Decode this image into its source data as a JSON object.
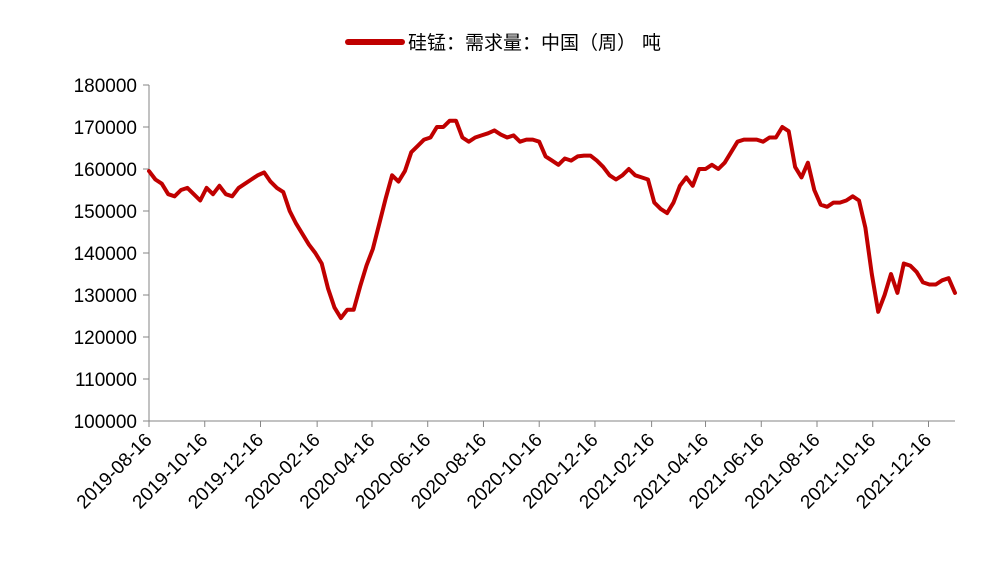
{
  "chart_data": {
    "type": "line",
    "legend": {
      "position": "top-center"
    },
    "series": [
      {
        "name": "硅锰：需求量：中国（周） 吨",
        "color": "#c00000",
        "points": [
          [
            "2019-08-16",
            159500
          ],
          [
            "2019-08-23",
            157500
          ],
          [
            "2019-08-30",
            156500
          ],
          [
            "2019-09-06",
            154000
          ],
          [
            "2019-09-13",
            153500
          ],
          [
            "2019-09-20",
            155000
          ],
          [
            "2019-09-27",
            155500
          ],
          [
            "2019-10-04",
            154000
          ],
          [
            "2019-10-11",
            152500
          ],
          [
            "2019-10-18",
            155500
          ],
          [
            "2019-10-25",
            154000
          ],
          [
            "2019-11-01",
            156000
          ],
          [
            "2019-11-08",
            154000
          ],
          [
            "2019-11-15",
            153500
          ],
          [
            "2019-11-22",
            155500
          ],
          [
            "2019-11-29",
            156500
          ],
          [
            "2019-12-06",
            157500
          ],
          [
            "2019-12-13",
            158500
          ],
          [
            "2019-12-20",
            159200
          ],
          [
            "2019-12-27",
            157000
          ],
          [
            "2020-01-03",
            155500
          ],
          [
            "2020-01-10",
            154500
          ],
          [
            "2020-01-17",
            150000
          ],
          [
            "2020-01-24",
            147000
          ],
          [
            "2020-01-31",
            144500
          ],
          [
            "2020-02-07",
            142000
          ],
          [
            "2020-02-14",
            140000
          ],
          [
            "2020-02-21",
            137500
          ],
          [
            "2020-02-28",
            131500
          ],
          [
            "2020-03-06",
            127000
          ],
          [
            "2020-03-13",
            124500
          ],
          [
            "2020-03-20",
            126500
          ],
          [
            "2020-03-27",
            126500
          ],
          [
            "2020-04-03",
            132000
          ],
          [
            "2020-04-10",
            137000
          ],
          [
            "2020-04-17",
            141000
          ],
          [
            "2020-04-24",
            147000
          ],
          [
            "2020-05-01",
            153000
          ],
          [
            "2020-05-08",
            158500
          ],
          [
            "2020-05-15",
            157000
          ],
          [
            "2020-05-22",
            159500
          ],
          [
            "2020-05-29",
            164000
          ],
          [
            "2020-06-05",
            165500
          ],
          [
            "2020-06-12",
            167000
          ],
          [
            "2020-06-19",
            167500
          ],
          [
            "2020-06-26",
            170000
          ],
          [
            "2020-07-03",
            170000
          ],
          [
            "2020-07-10",
            171500
          ],
          [
            "2020-07-17",
            171500
          ],
          [
            "2020-07-24",
            167500
          ],
          [
            "2020-07-31",
            166500
          ],
          [
            "2020-08-07",
            167500
          ],
          [
            "2020-08-14",
            168000
          ],
          [
            "2020-08-21",
            168500
          ],
          [
            "2020-08-28",
            169200
          ],
          [
            "2020-09-04",
            168200
          ],
          [
            "2020-09-11",
            167500
          ],
          [
            "2020-09-18",
            168000
          ],
          [
            "2020-09-25",
            166500
          ],
          [
            "2020-10-02",
            167000
          ],
          [
            "2020-10-09",
            167000
          ],
          [
            "2020-10-16",
            166500
          ],
          [
            "2020-10-23",
            163000
          ],
          [
            "2020-10-30",
            162000
          ],
          [
            "2020-11-06",
            161000
          ],
          [
            "2020-11-13",
            162500
          ],
          [
            "2020-11-20",
            162000
          ],
          [
            "2020-11-27",
            163000
          ],
          [
            "2020-12-04",
            163200
          ],
          [
            "2020-12-11",
            163200
          ],
          [
            "2020-12-18",
            162000
          ],
          [
            "2020-12-25",
            160500
          ],
          [
            "2021-01-01",
            158500
          ],
          [
            "2021-01-08",
            157500
          ],
          [
            "2021-01-15",
            158500
          ],
          [
            "2021-01-22",
            160000
          ],
          [
            "2021-01-29",
            158500
          ],
          [
            "2021-02-05",
            158000
          ],
          [
            "2021-02-12",
            157500
          ],
          [
            "2021-02-19",
            152000
          ],
          [
            "2021-02-26",
            150500
          ],
          [
            "2021-03-05",
            149500
          ],
          [
            "2021-03-12",
            152000
          ],
          [
            "2021-03-19",
            156000
          ],
          [
            "2021-03-26",
            158000
          ],
          [
            "2021-04-02",
            156000
          ],
          [
            "2021-04-09",
            160000
          ],
          [
            "2021-04-16",
            160000
          ],
          [
            "2021-04-23",
            161000
          ],
          [
            "2021-04-30",
            160000
          ],
          [
            "2021-05-07",
            161500
          ],
          [
            "2021-05-14",
            164000
          ],
          [
            "2021-05-21",
            166500
          ],
          [
            "2021-05-28",
            167000
          ],
          [
            "2021-06-04",
            167000
          ],
          [
            "2021-06-11",
            167000
          ],
          [
            "2021-06-18",
            166500
          ],
          [
            "2021-06-25",
            167500
          ],
          [
            "2021-07-02",
            167500
          ],
          [
            "2021-07-09",
            170000
          ],
          [
            "2021-07-16",
            169000
          ],
          [
            "2021-07-23",
            160500
          ],
          [
            "2021-07-30",
            158000
          ],
          [
            "2021-08-06",
            161500
          ],
          [
            "2021-08-13",
            155000
          ],
          [
            "2021-08-20",
            151500
          ],
          [
            "2021-08-27",
            151000
          ],
          [
            "2021-09-03",
            152000
          ],
          [
            "2021-09-10",
            152000
          ],
          [
            "2021-09-17",
            152500
          ],
          [
            "2021-09-24",
            153500
          ],
          [
            "2021-10-01",
            152500
          ],
          [
            "2021-10-08",
            146000
          ],
          [
            "2021-10-15",
            135000
          ],
          [
            "2021-10-22",
            126000
          ],
          [
            "2021-10-29",
            130000
          ],
          [
            "2021-11-05",
            135000
          ],
          [
            "2021-11-12",
            130500
          ],
          [
            "2021-11-19",
            137500
          ],
          [
            "2021-11-26",
            137000
          ],
          [
            "2021-12-03",
            135500
          ],
          [
            "2021-12-10",
            133000
          ],
          [
            "2021-12-17",
            132500
          ],
          [
            "2021-12-24",
            132500
          ],
          [
            "2021-12-31",
            133500
          ],
          [
            "2022-01-07",
            134000
          ],
          [
            "2022-01-14",
            130500
          ]
        ]
      }
    ],
    "ylim": [
      100000,
      180000
    ],
    "yticks": [
      100000,
      110000,
      120000,
      130000,
      140000,
      150000,
      160000,
      170000,
      180000
    ],
    "xlim": [
      "2019-08-16",
      "2022-01-14"
    ],
    "xticks": [
      "2019-08-16",
      "2019-10-16",
      "2019-12-16",
      "2020-02-16",
      "2020-04-16",
      "2020-06-16",
      "2020-08-16",
      "2020-10-16",
      "2020-12-16",
      "2021-02-16",
      "2021-04-16",
      "2021-06-16",
      "2021-08-16",
      "2021-10-16",
      "2021-12-16"
    ],
    "grid": false
  }
}
